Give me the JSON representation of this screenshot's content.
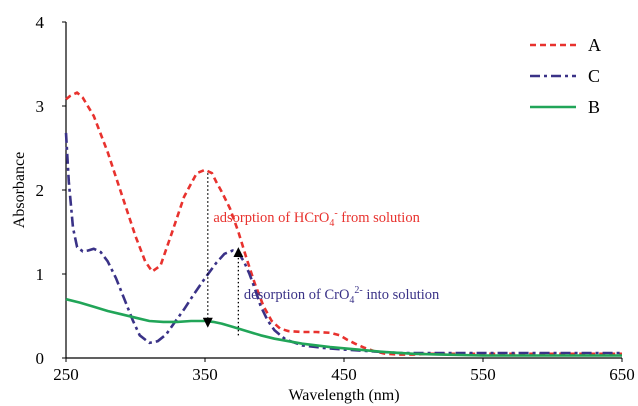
{
  "chart_data": {
    "type": "line",
    "xlabel": "Wavelength  (nm)",
    "ylabel": "Absorbance",
    "xlim": [
      250,
      650
    ],
    "ylim": [
      0,
      4
    ],
    "x_ticks": [
      "250",
      "350",
      "450",
      "550",
      "650"
    ],
    "y_ticks": [
      "0",
      "1",
      "2",
      "3",
      "4"
    ],
    "grid": false,
    "legend_position": "top-right",
    "series": [
      {
        "name": "A",
        "color": "#e8322e",
        "style": "dashed",
        "x": [
          250,
          253,
          258,
          262,
          270,
          280,
          290,
          300,
          307,
          312,
          318,
          326,
          335,
          344,
          350,
          355,
          358,
          362,
          368,
          374,
          380,
          386,
          392,
          398,
          404,
          410,
          420,
          430,
          440,
          447,
          452,
          458,
          465,
          472,
          480,
          490,
          500,
          510,
          530,
          560,
          600,
          650
        ],
        "y": [
          3.08,
          3.12,
          3.16,
          3.1,
          2.88,
          2.45,
          1.95,
          1.45,
          1.15,
          1.03,
          1.1,
          1.48,
          1.92,
          2.2,
          2.24,
          2.2,
          2.1,
          1.98,
          1.78,
          1.5,
          1.18,
          0.88,
          0.62,
          0.44,
          0.35,
          0.32,
          0.31,
          0.31,
          0.3,
          0.27,
          0.22,
          0.17,
          0.12,
          0.08,
          0.05,
          0.04,
          0.04,
          0.05,
          0.05,
          0.05,
          0.05,
          0.05
        ]
      },
      {
        "name": "C",
        "color": "#3a3287",
        "style": "dashdot",
        "x": [
          250,
          252,
          255,
          258,
          262,
          266,
          270,
          275,
          280,
          286,
          292,
          298,
          303,
          310,
          316,
          322,
          328,
          335,
          342,
          350,
          358,
          364,
          370,
          374,
          378,
          382,
          386,
          390,
          395,
          400,
          408,
          420,
          435,
          450,
          470,
          490,
          510,
          550,
          600,
          650
        ],
        "y": [
          2.68,
          2.1,
          1.55,
          1.32,
          1.27,
          1.28,
          1.3,
          1.26,
          1.15,
          0.95,
          0.7,
          0.45,
          0.27,
          0.18,
          0.2,
          0.28,
          0.42,
          0.58,
          0.76,
          0.95,
          1.13,
          1.24,
          1.28,
          1.25,
          1.15,
          1.0,
          0.82,
          0.62,
          0.45,
          0.33,
          0.22,
          0.15,
          0.12,
          0.1,
          0.08,
          0.06,
          0.06,
          0.06,
          0.06,
          0.06
        ]
      },
      {
        "name": "B",
        "color": "#21a558",
        "style": "solid",
        "x": [
          250,
          260,
          270,
          280,
          290,
          300,
          310,
          320,
          330,
          340,
          350,
          356,
          362,
          370,
          380,
          390,
          400,
          420,
          440,
          460,
          480,
          500,
          520,
          550,
          600,
          650
        ],
        "y": [
          0.7,
          0.66,
          0.61,
          0.56,
          0.52,
          0.48,
          0.44,
          0.43,
          0.43,
          0.44,
          0.44,
          0.43,
          0.41,
          0.37,
          0.32,
          0.27,
          0.23,
          0.17,
          0.13,
          0.1,
          0.07,
          0.05,
          0.04,
          0.03,
          0.03,
          0.03
        ]
      }
    ],
    "annotations": [
      {
        "text_main": "adsorption of HCrO",
        "sub": "4",
        "sup": "-",
        "text_end": " from solution",
        "color": "#e8322e",
        "x": 356,
        "y": 1.62,
        "arrow": {
          "x": 352,
          "from": 2.2,
          "to": 0.42,
          "direction": "down"
        }
      },
      {
        "text_main": "desorption of CrO",
        "sub": "4",
        "sup": "2-",
        "text_end": " into solution",
        "color": "#3a3287",
        "x": 378,
        "y": 0.7,
        "arrow": {
          "x": 374,
          "from": 0.27,
          "to": 1.26,
          "direction": "up"
        }
      }
    ]
  }
}
